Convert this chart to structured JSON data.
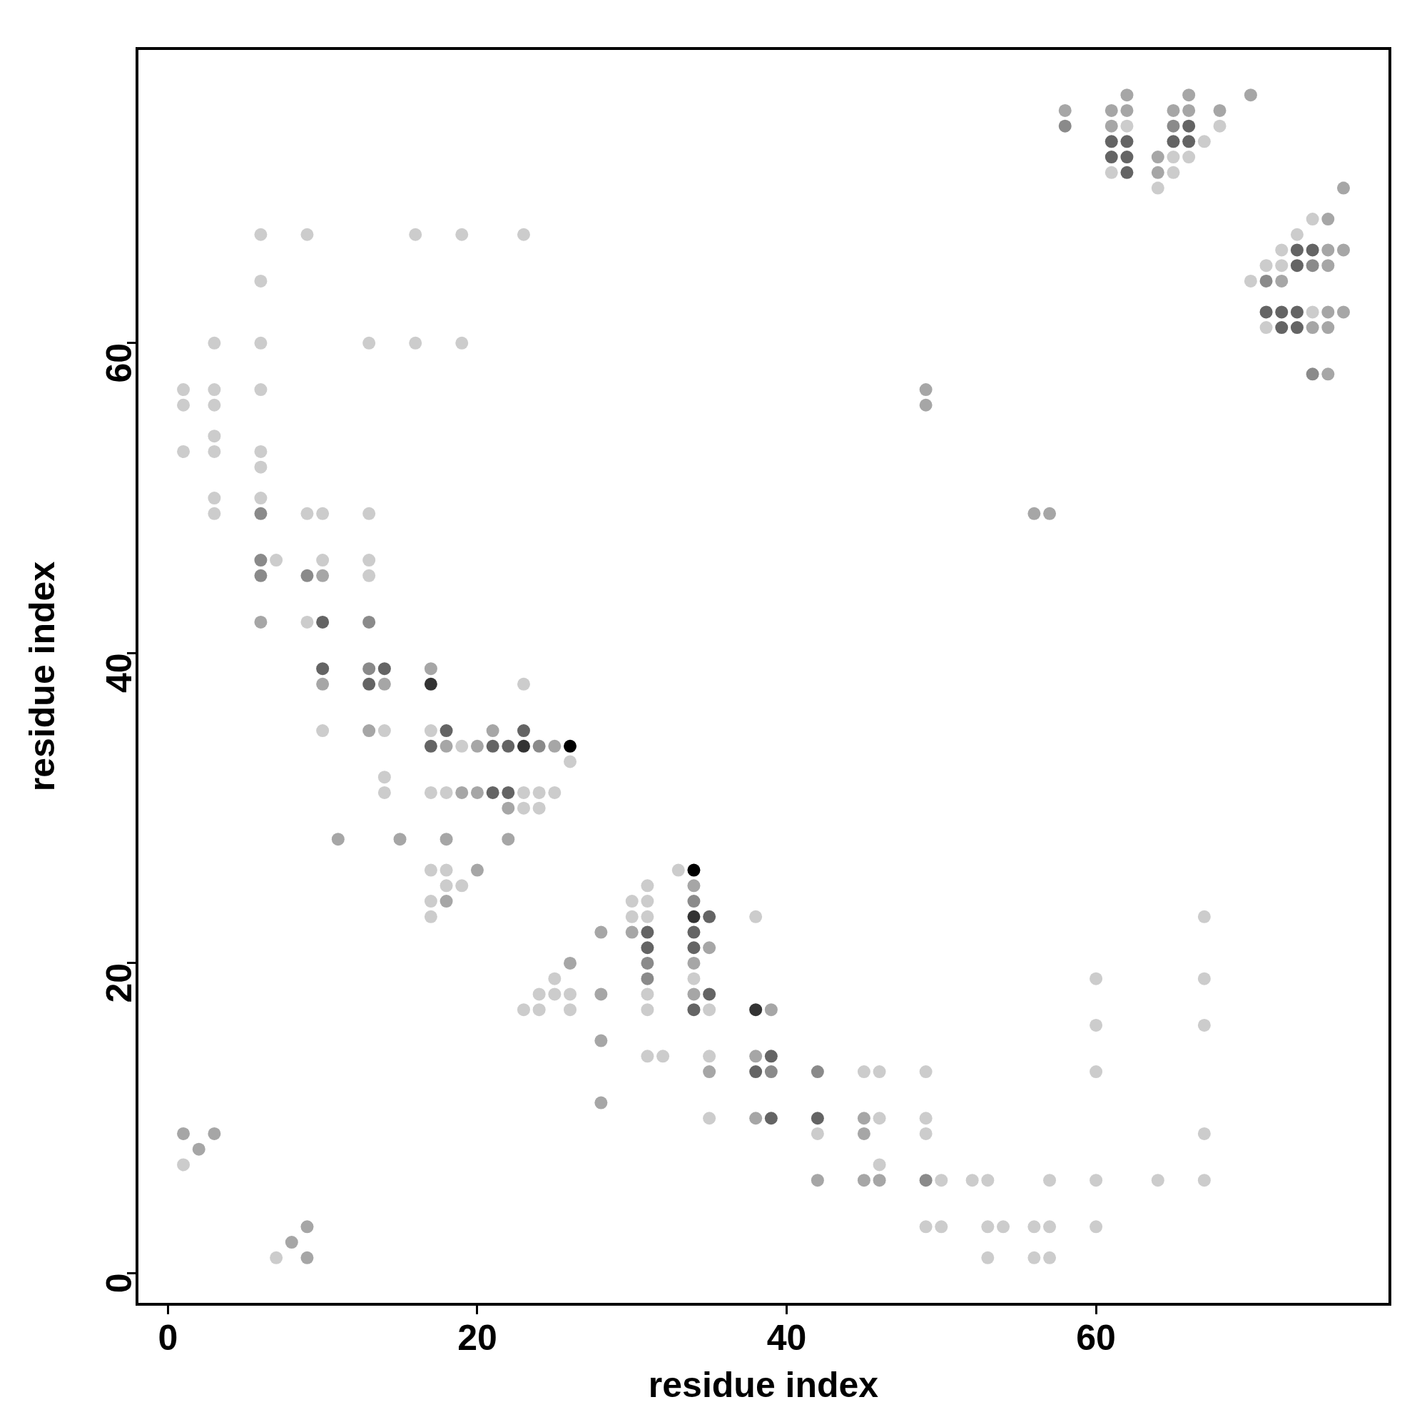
{
  "chart_data": {
    "type": "scatter",
    "xlabel": "residue index",
    "ylabel": "residue index",
    "xlim": [
      -2,
      79
    ],
    "ylim": [
      -2,
      79
    ],
    "xticks": [
      0,
      20,
      40,
      60
    ],
    "yticks": [
      0,
      20,
      40,
      60
    ],
    "marker": "circle",
    "legend": false,
    "series": [
      {
        "color": "#cccccc",
        "x": [
          62,
          68,
          67,
          65,
          66,
          61,
          65,
          64,
          74,
          73,
          72,
          71,
          72,
          70,
          74,
          71,
          6,
          9,
          16,
          19,
          23,
          6,
          3,
          6,
          13,
          16,
          19,
          1,
          3,
          6,
          1,
          3,
          3,
          1,
          3,
          6,
          6,
          3,
          6,
          3,
          9,
          10,
          13,
          7,
          10,
          13,
          13,
          9,
          23,
          10,
          14,
          17,
          19,
          26,
          14,
          14,
          17,
          18,
          23,
          24,
          25,
          23,
          24,
          17,
          18,
          33,
          18,
          19,
          31,
          17,
          30,
          31,
          17,
          30,
          31,
          38,
          67,
          25,
          34,
          60,
          67,
          24,
          25,
          26,
          31,
          23,
          24,
          26,
          31,
          35,
          60,
          67,
          31,
          32,
          35,
          45,
          46,
          49,
          60,
          35,
          46,
          49,
          42,
          49,
          67,
          1,
          46,
          50,
          52,
          53,
          57,
          60,
          64,
          67,
          49,
          50,
          53,
          54,
          56,
          57,
          60,
          7,
          53,
          56,
          57
        ],
        "values": [
          74,
          74,
          73,
          72,
          72,
          71,
          71,
          70,
          68,
          67,
          66,
          65,
          65,
          64,
          62,
          61,
          67,
          67,
          67,
          67,
          67,
          64,
          60,
          60,
          60,
          60,
          60,
          57,
          57,
          57,
          56,
          56,
          54,
          53,
          53,
          53,
          52,
          50,
          50,
          49,
          49,
          49,
          49,
          46,
          46,
          46,
          45,
          42,
          38,
          35,
          35,
          35,
          34,
          33,
          32,
          31,
          31,
          31,
          31,
          31,
          31,
          30,
          30,
          26,
          26,
          26,
          25,
          25,
          25,
          24,
          24,
          24,
          23,
          23,
          23,
          23,
          23,
          19,
          19,
          19,
          19,
          18,
          18,
          18,
          18,
          17,
          17,
          17,
          17,
          17,
          16,
          16,
          14,
          14,
          14,
          13,
          13,
          13,
          13,
          10,
          10,
          10,
          9,
          9,
          9,
          7,
          7,
          6,
          6,
          6,
          6,
          6,
          6,
          6,
          3,
          3,
          3,
          3,
          3,
          3,
          3,
          1,
          1,
          1,
          1
        ]
      },
      {
        "color": "#a6a6a6",
        "x": [
          62,
          66,
          70,
          58,
          61,
          62,
          65,
          66,
          68,
          61,
          64,
          64,
          76,
          75,
          75,
          76,
          75,
          72,
          75,
          76,
          74,
          75,
          75,
          56,
          57,
          49,
          49,
          10,
          6,
          17,
          10,
          14,
          13,
          21,
          18,
          20,
          25,
          19,
          20,
          22,
          11,
          15,
          18,
          22,
          20,
          34,
          18,
          28,
          30,
          35,
          26,
          34,
          28,
          34,
          39,
          28,
          38,
          35,
          28,
          38,
          45,
          1,
          3,
          45,
          2,
          42,
          45,
          46,
          9,
          8,
          9
        ],
        "values": [
          76,
          76,
          76,
          75,
          75,
          75,
          75,
          75,
          75,
          74,
          72,
          71,
          70,
          68,
          66,
          66,
          65,
          64,
          62,
          62,
          61,
          61,
          58,
          49,
          49,
          57,
          56,
          45,
          42,
          39,
          38,
          38,
          35,
          35,
          34,
          34,
          34,
          31,
          31,
          30,
          28,
          28,
          28,
          28,
          26,
          25,
          24,
          22,
          22,
          21,
          20,
          20,
          18,
          18,
          17,
          15,
          14,
          13,
          11,
          10,
          10,
          9,
          9,
          9,
          8,
          6,
          6,
          6,
          3,
          2,
          1
        ]
      },
      {
        "color": "#8a8a8a",
        "x": [
          58,
          65,
          74,
          71,
          74,
          6,
          6,
          6,
          9,
          13,
          13,
          24,
          34,
          31,
          31,
          39,
          42,
          49
        ],
        "values": [
          74,
          74,
          65,
          64,
          58,
          49,
          46,
          45,
          45,
          42,
          39,
          34,
          24,
          20,
          19,
          13,
          13,
          6
        ]
      },
      {
        "color": "#646464",
        "x": [
          66,
          61,
          62,
          65,
          66,
          61,
          62,
          62,
          73,
          74,
          73,
          71,
          72,
          73,
          72,
          73,
          10,
          10,
          14,
          13,
          18,
          23,
          17,
          21,
          22,
          21,
          22,
          35,
          31,
          34,
          31,
          34,
          35,
          34,
          39,
          38,
          39,
          42
        ],
        "values": [
          74,
          73,
          73,
          73,
          73,
          72,
          72,
          71,
          66,
          66,
          65,
          62,
          62,
          62,
          61,
          61,
          42,
          39,
          39,
          38,
          35,
          35,
          34,
          34,
          34,
          31,
          31,
          23,
          22,
          22,
          21,
          21,
          18,
          17,
          14,
          13,
          10,
          10
        ]
      },
      {
        "color": "#333333",
        "x": [
          17,
          23,
          34,
          38
        ],
        "values": [
          38,
          34,
          23,
          17
        ]
      },
      {
        "color": "#000000",
        "x": [
          26,
          34
        ],
        "values": [
          34,
          26
        ]
      }
    ]
  }
}
